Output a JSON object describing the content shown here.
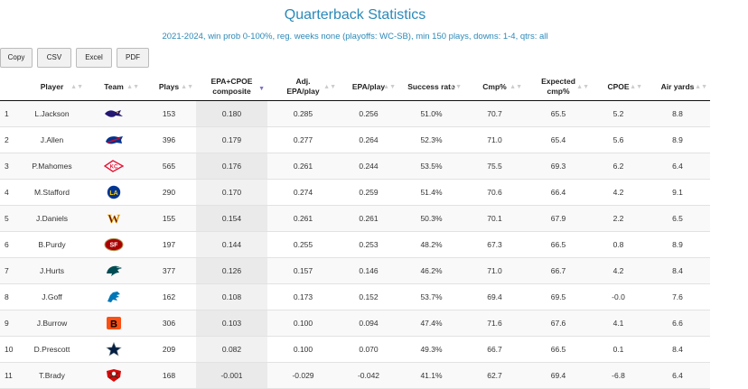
{
  "title": "Quarterback Statistics",
  "subtitle": "2021-2024, win prob 0-100%, reg. weeks none (playoffs: WC-SB), min 150 plays, downs: 1-4, qtrs: all",
  "buttons": {
    "copy": "Copy",
    "csv": "CSV",
    "excel": "Excel",
    "pdf": "PDF"
  },
  "sort_icon": "sort-arrows-icon",
  "headers": {
    "player": "Player",
    "team": "Team",
    "plays": "Plays",
    "composite_1": "EPA+CPOE",
    "composite_2": "composite",
    "adj_epa_1": "Adj.",
    "adj_epa_2": "EPA/play",
    "epa": "EPA/play",
    "success": "Success rate",
    "cmp": "Cmp%",
    "exp_cmp_1": "Expected",
    "exp_cmp_2": "cmp%",
    "cpoe": "CPOE",
    "air": "Air yards"
  },
  "rows": [
    {
      "rank": "1",
      "player": "L.Jackson",
      "team_logo": "ravens-logo-icon",
      "plays": "153",
      "composite": "0.180",
      "adj_epa": "0.285",
      "epa": "0.256",
      "success": "51.0%",
      "cmp": "70.7",
      "exp_cmp": "65.5",
      "cpoe": "5.2",
      "air": "8.8"
    },
    {
      "rank": "2",
      "player": "J.Allen",
      "team_logo": "bills-logo-icon",
      "plays": "396",
      "composite": "0.179",
      "adj_epa": "0.277",
      "epa": "0.264",
      "success": "52.3%",
      "cmp": "71.0",
      "exp_cmp": "65.4",
      "cpoe": "5.6",
      "air": "8.9"
    },
    {
      "rank": "3",
      "player": "P.Mahomes",
      "team_logo": "chiefs-logo-icon",
      "plays": "565",
      "composite": "0.176",
      "adj_epa": "0.261",
      "epa": "0.244",
      "success": "53.5%",
      "cmp": "75.5",
      "exp_cmp": "69.3",
      "cpoe": "6.2",
      "air": "6.4"
    },
    {
      "rank": "4",
      "player": "M.Stafford",
      "team_logo": "rams-logo-icon",
      "plays": "290",
      "composite": "0.170",
      "adj_epa": "0.274",
      "epa": "0.259",
      "success": "51.4%",
      "cmp": "70.6",
      "exp_cmp": "66.4",
      "cpoe": "4.2",
      "air": "9.1"
    },
    {
      "rank": "5",
      "player": "J.Daniels",
      "team_logo": "commanders-logo-icon",
      "plays": "155",
      "composite": "0.154",
      "adj_epa": "0.261",
      "epa": "0.261",
      "success": "50.3%",
      "cmp": "70.1",
      "exp_cmp": "67.9",
      "cpoe": "2.2",
      "air": "6.5"
    },
    {
      "rank": "6",
      "player": "B.Purdy",
      "team_logo": "49ers-logo-icon",
      "plays": "197",
      "composite": "0.144",
      "adj_epa": "0.255",
      "epa": "0.253",
      "success": "48.2%",
      "cmp": "67.3",
      "exp_cmp": "66.5",
      "cpoe": "0.8",
      "air": "8.9"
    },
    {
      "rank": "7",
      "player": "J.Hurts",
      "team_logo": "eagles-logo-icon",
      "plays": "377",
      "composite": "0.126",
      "adj_epa": "0.157",
      "epa": "0.146",
      "success": "46.2%",
      "cmp": "71.0",
      "exp_cmp": "66.7",
      "cpoe": "4.2",
      "air": "8.4"
    },
    {
      "rank": "8",
      "player": "J.Goff",
      "team_logo": "lions-logo-icon",
      "plays": "162",
      "composite": "0.108",
      "adj_epa": "0.173",
      "epa": "0.152",
      "success": "53.7%",
      "cmp": "69.4",
      "exp_cmp": "69.5",
      "cpoe": "-0.0",
      "air": "7.6"
    },
    {
      "rank": "9",
      "player": "J.Burrow",
      "team_logo": "bengals-logo-icon",
      "plays": "306",
      "composite": "0.103",
      "adj_epa": "0.100",
      "epa": "0.094",
      "success": "47.4%",
      "cmp": "71.6",
      "exp_cmp": "67.6",
      "cpoe": "4.1",
      "air": "6.6"
    },
    {
      "rank": "10",
      "player": "D.Prescott",
      "team_logo": "cowboys-logo-icon",
      "plays": "209",
      "composite": "0.082",
      "adj_epa": "0.100",
      "epa": "0.070",
      "success": "49.3%",
      "cmp": "66.7",
      "exp_cmp": "66.5",
      "cpoe": "0.1",
      "air": "8.4"
    },
    {
      "rank": "11",
      "player": "T.Brady",
      "team_logo": "buccaneers-logo-icon",
      "plays": "168",
      "composite": "-0.001",
      "adj_epa": "-0.029",
      "epa": "-0.042",
      "success": "41.1%",
      "cmp": "62.7",
      "exp_cmp": "69.4",
      "cpoe": "-6.8",
      "air": "6.4"
    }
  ]
}
